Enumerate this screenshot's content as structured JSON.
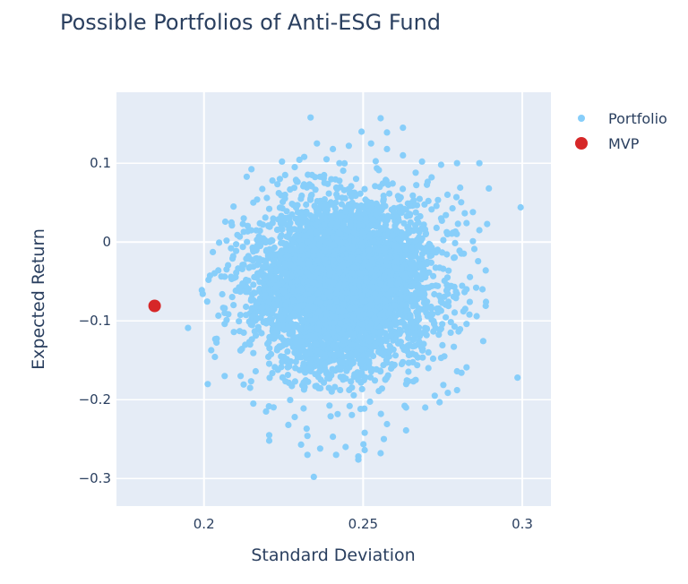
{
  "chart_data": {
    "type": "scatter",
    "title": "Possible Portfolios of Anti-ESG Fund",
    "xlabel": "Standard Deviation",
    "ylabel": "Expected Return",
    "xlim": [
      0.1725,
      0.309
    ],
    "ylim": [
      -0.335,
      0.19
    ],
    "xticks": [
      0.2,
      0.25,
      0.3
    ],
    "xtick_labels": [
      "0.2",
      "0.25",
      "0.3"
    ],
    "yticks": [
      0.1,
      0,
      -0.1,
      -0.2,
      -0.3
    ],
    "ytick_labels": [
      "0.1",
      "0",
      "−0.1",
      "−0.2",
      "−0.3"
    ],
    "grid": true,
    "legend_position": "top-right",
    "series": [
      {
        "name": "Portfolio",
        "color": "#87cefa",
        "marker": "circle",
        "cloud": {
          "center": [
            0.2435,
            -0.055
          ],
          "spread": [
            0.0135,
            0.052
          ],
          "count": 5000
        },
        "values": [
          [
            0.2335,
            0.158
          ],
          [
            0.2555,
            0.157
          ],
          [
            0.2625,
            0.145
          ],
          [
            0.2495,
            0.14
          ],
          [
            0.2575,
            0.139
          ],
          [
            0.2525,
            0.125
          ],
          [
            0.2455,
            0.122
          ],
          [
            0.2355,
            0.125
          ],
          [
            0.2405,
            0.118
          ],
          [
            0.2385,
            0.105
          ],
          [
            0.2685,
            0.102
          ],
          [
            0.2795,
            0.1
          ],
          [
            0.2865,
            0.1
          ],
          [
            0.2745,
            0.098
          ],
          [
            0.2715,
            0.082
          ],
          [
            0.2895,
            0.068
          ],
          [
            0.2805,
            0.069
          ],
          [
            0.2765,
            0.06
          ],
          [
            0.2995,
            0.044
          ],
          [
            0.2845,
            0.038
          ],
          [
            0.2825,
            0.024
          ],
          [
            0.2865,
            0.015
          ],
          [
            0.2845,
            0.001
          ],
          [
            0.2885,
            -0.036
          ],
          [
            0.2855,
            -0.058
          ],
          [
            0.2825,
            -0.06
          ],
          [
            0.2875,
            -0.06
          ],
          [
            0.2885,
            -0.081
          ],
          [
            0.2835,
            -0.076
          ],
          [
            0.2815,
            -0.088
          ],
          [
            0.2825,
            -0.104
          ],
          [
            0.2785,
            -0.133
          ],
          [
            0.2755,
            -0.145
          ],
          [
            0.2745,
            -0.147
          ],
          [
            0.2825,
            -0.159
          ],
          [
            0.2795,
            -0.164
          ],
          [
            0.2985,
            -0.172
          ],
          [
            0.2795,
            -0.188
          ],
          [
            0.2725,
            -0.195
          ],
          [
            0.2635,
            -0.239
          ],
          [
            0.2565,
            -0.25
          ],
          [
            0.2505,
            -0.264
          ],
          [
            0.2485,
            -0.272
          ],
          [
            0.2555,
            -0.268
          ],
          [
            0.2485,
            -0.276
          ],
          [
            0.2365,
            -0.262
          ],
          [
            0.2325,
            -0.27
          ],
          [
            0.2415,
            -0.27
          ],
          [
            0.2345,
            -0.298
          ],
          [
            0.2305,
            -0.257
          ],
          [
            0.2205,
            -0.252
          ],
          [
            0.2205,
            -0.245
          ],
          [
            0.2155,
            -0.205
          ],
          [
            0.2065,
            -0.17
          ],
          [
            0.2115,
            -0.17
          ],
          [
            0.2065,
            -0.104
          ],
          [
            0.2065,
            -0.09
          ],
          [
            0.2065,
            -0.084
          ],
          [
            0.2045,
            -0.036
          ],
          [
            0.2065,
            -0.044
          ],
          [
            0.2085,
            -0.008
          ],
          [
            0.2105,
            0.009
          ],
          [
            0.2125,
            0.013
          ],
          [
            0.2135,
            0.0
          ],
          [
            0.2155,
            -0.012
          ],
          [
            0.2185,
            0.022
          ],
          [
            0.2205,
            0.042
          ],
          [
            0.2235,
            0.062
          ],
          [
            0.2215,
            0.078
          ],
          [
            0.2255,
            0.085
          ],
          [
            0.2285,
            0.095
          ],
          [
            0.2245,
            0.102
          ],
          [
            0.2315,
            0.108
          ],
          [
            0.2265,
            -0.232
          ],
          [
            0.2285,
            -0.222
          ],
          [
            0.2325,
            -0.246
          ],
          [
            0.2405,
            -0.247
          ],
          [
            0.2445,
            -0.26
          ],
          [
            0.2505,
            -0.242
          ],
          [
            0.2575,
            -0.231
          ],
          [
            0.2635,
            -0.21
          ],
          [
            0.2695,
            -0.21
          ],
          [
            0.2745,
            -0.11
          ],
          [
            0.2775,
            -0.115
          ],
          [
            0.2765,
            -0.045
          ],
          [
            0.2785,
            -0.02
          ],
          [
            0.2765,
            0.01
          ],
          [
            0.2745,
            0.03
          ],
          [
            0.2705,
            0.052
          ],
          [
            0.2665,
            0.088
          ],
          [
            0.2625,
            0.11
          ],
          [
            0.2575,
            0.118
          ],
          [
            0.2155,
            0.05
          ],
          [
            0.2125,
            0.03
          ],
          [
            0.2145,
            -0.13
          ],
          [
            0.2125,
            -0.115
          ],
          [
            0.2145,
            -0.185
          ],
          [
            0.2195,
            -0.215
          ],
          [
            0.2665,
            -0.175
          ],
          [
            0.2705,
            -0.16
          ]
        ]
      },
      {
        "name": "MVP",
        "color": "#d62728",
        "marker": "circle",
        "values": [
          [
            0.1845,
            -0.081
          ]
        ]
      }
    ]
  }
}
